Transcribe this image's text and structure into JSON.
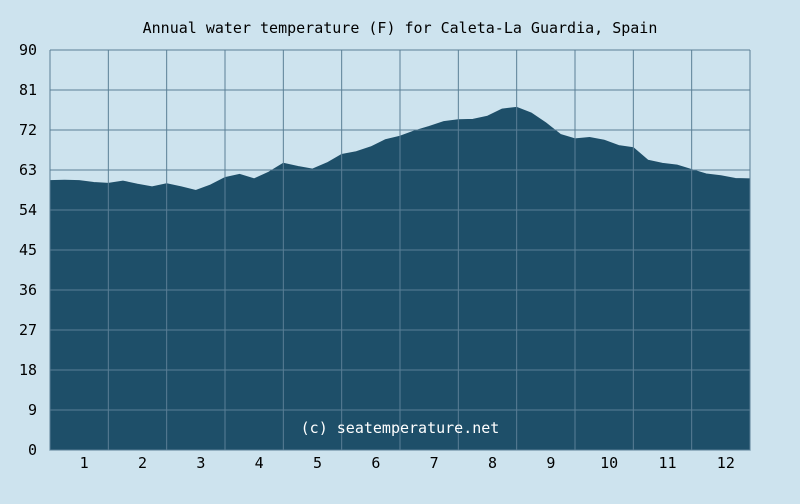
{
  "chart_data": {
    "type": "area",
    "title": "Annual water temperature (F) for Caleta-La Guardia, Spain",
    "xlabel": "",
    "ylabel": "",
    "xlim": [
      0.5,
      12.5
    ],
    "ylim": [
      0,
      90
    ],
    "x_ticks": [
      "1",
      "2",
      "3",
      "4",
      "5",
      "6",
      "7",
      "8",
      "9",
      "10",
      "11",
      "12"
    ],
    "y_ticks": [
      0,
      9,
      18,
      27,
      36,
      45,
      54,
      63,
      72,
      81,
      90
    ],
    "grid": true,
    "legend": "none",
    "colors": {
      "background": "#cde3ee",
      "plot_background": "#cde3ee",
      "fill": "#1e4f69",
      "grid": "#5a7f96",
      "axis_text": "#000000"
    },
    "annotation": "(c) seatemperature.net",
    "series": [
      {
        "x": [
          0.5,
          0.75,
          1.0,
          1.25,
          1.5,
          1.75,
          2.0,
          2.25,
          2.5,
          2.75,
          3.0,
          3.25,
          3.5,
          3.75,
          4.0,
          4.25,
          4.5,
          4.75,
          5.0,
          5.25,
          5.5,
          5.75,
          6.0,
          6.25,
          6.5,
          6.75,
          7.0,
          7.25,
          7.5,
          7.75,
          8.0,
          8.25,
          8.5,
          8.75,
          9.0,
          9.25,
          9.5,
          9.75,
          10.0,
          10.25,
          10.5,
          10.75,
          11.0,
          11.25,
          11.5,
          11.75,
          12.0,
          12.25,
          12.5
        ],
        "values": [
          60.6,
          60.7,
          60.6,
          60.2,
          60.0,
          60.5,
          59.8,
          59.2,
          59.9,
          59.2,
          58.4,
          59.6,
          61.3,
          62.0,
          61.0,
          62.5,
          64.5,
          63.8,
          63.2,
          64.6,
          66.5,
          67.1,
          68.2,
          69.8,
          70.6,
          71.8,
          72.8,
          73.9,
          74.3,
          74.4,
          75.1,
          76.7,
          77.1,
          75.8,
          73.6,
          71.0,
          70.0,
          70.3,
          69.7,
          68.5,
          68.0,
          65.2,
          64.5,
          64.1,
          63.1,
          62.1,
          61.7,
          61.1,
          61.0
        ]
      }
    ]
  }
}
